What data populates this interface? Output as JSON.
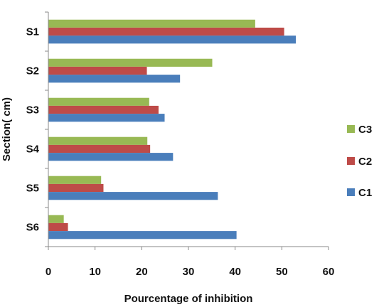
{
  "chart_data": {
    "type": "bar",
    "orientation": "horizontal",
    "categories": [
      "S1",
      "S2",
      "S3",
      "S4",
      "S5",
      "S6"
    ],
    "series": [
      {
        "name": "C1",
        "color": "#4a7ebb",
        "values": [
          53.0,
          28.2,
          24.9,
          26.7,
          36.3,
          40.3
        ]
      },
      {
        "name": "C2",
        "color": "#be4b48",
        "values": [
          50.5,
          21.1,
          23.6,
          21.8,
          11.8,
          4.2
        ]
      },
      {
        "name": "C3",
        "color": "#98b954",
        "values": [
          44.3,
          35.1,
          21.6,
          21.2,
          11.3,
          3.3
        ]
      }
    ],
    "xlabel": "Pourcentage of inhibition",
    "ylabel": "Section( cm)",
    "xlim": [
      0,
      60
    ],
    "xticks": [
      "0",
      "10",
      "20",
      "30",
      "40",
      "50",
      "60"
    ],
    "grid": false,
    "legend_position": "right",
    "legend_order": [
      "C3",
      "C2",
      "C1"
    ]
  }
}
